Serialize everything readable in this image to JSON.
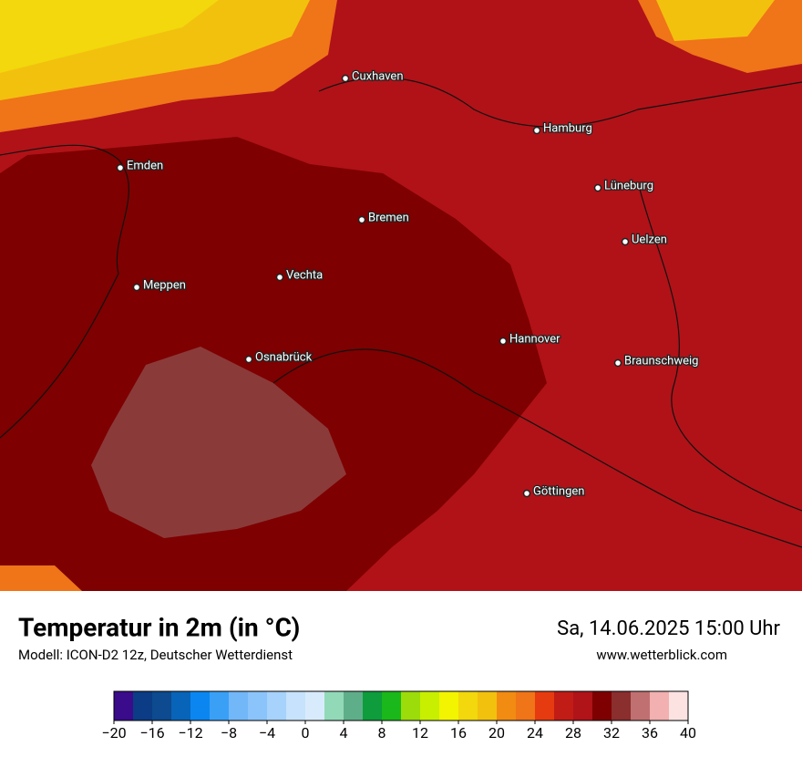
{
  "map": {
    "cities": [
      "Cuxhaven",
      "Hamburg",
      "Emden",
      "Lüneburg",
      "Bremen",
      "Uelzen",
      "Vechta",
      "Meppen",
      "Hannover",
      "Osnabrück",
      "Braunschweig",
      "Göttingen"
    ]
  },
  "footer": {
    "title": "Temperatur in 2m (in °C)",
    "subtitle": "Modell: ICON-D2 12z, Deutscher Wetterdienst",
    "datetime": "Sa, 14.06.2025 15:00 Uhr",
    "website": "www.wetterblick.com"
  },
  "colorbar": {
    "lim": [
      -20,
      40
    ],
    "ticks": [
      {
        "value": -20,
        "label": "−20"
      },
      {
        "value": -16,
        "label": "−16"
      },
      {
        "value": -12,
        "label": "−12"
      },
      {
        "value": -8,
        "label": "−8"
      },
      {
        "value": -4,
        "label": "−4"
      },
      0,
      4,
      8,
      12,
      16,
      20,
      24,
      28,
      32,
      36,
      40
    ],
    "colors": [
      "#3a0b8a",
      "#0b3c85",
      "#0d4a8f",
      "#0864b8",
      "#0b86f0",
      "#3aa0f6",
      "#72b7f8",
      "#8ac4fa",
      "#a6d2fb",
      "#c7e2fc",
      "#d8ebfc",
      "#92d9b8",
      "#5fae8a",
      "#0e9c3c",
      "#1ab81a",
      "#9cdc0a",
      "#c8ef00",
      "#f3f400",
      "#f2d80c",
      "#f2c10e",
      "#f28b12",
      "#f07418",
      "#e63b10",
      "#c11c16",
      "#b01318",
      "#7e0000",
      "#8b2e2e",
      "#c07070",
      "#f2b0b0",
      "#fde2e2"
    ]
  }
}
